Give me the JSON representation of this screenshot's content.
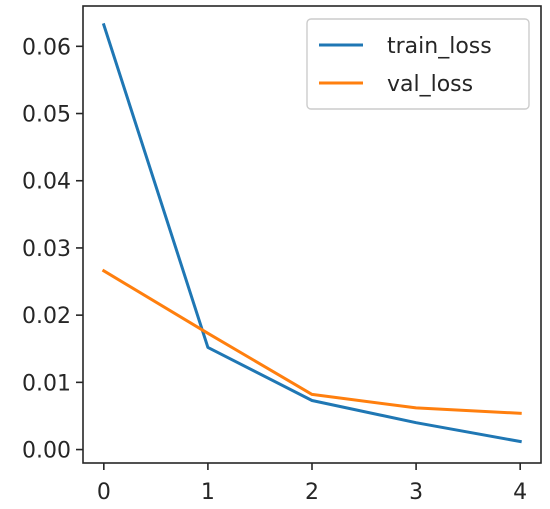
{
  "chart_data": {
    "type": "line",
    "title": "",
    "xlabel": "",
    "ylabel": "",
    "x": [
      0,
      1,
      2,
      3,
      4
    ],
    "xlim": [
      -0.2,
      4.2
    ],
    "ylim": [
      -0.002,
      0.066
    ],
    "xticks": [
      0,
      1,
      2,
      3,
      4
    ],
    "xtick_labels": [
      "0",
      "1",
      "2",
      "3",
      "4"
    ],
    "yticks": [
      0.0,
      0.01,
      0.02,
      0.03,
      0.04,
      0.05,
      0.06
    ],
    "ytick_labels": [
      "0.00",
      "0.01",
      "0.02",
      "0.03",
      "0.04",
      "0.05",
      "0.06"
    ],
    "grid": false,
    "legend_position": "top-right",
    "series": [
      {
        "name": "train_loss",
        "color": "#1f77b4",
        "values": [
          0.0632,
          0.0152,
          0.0073,
          0.004,
          0.0012
        ]
      },
      {
        "name": "val_loss",
        "color": "#ff7f0e",
        "values": [
          0.0266,
          0.0173,
          0.0082,
          0.0062,
          0.0054
        ]
      }
    ]
  }
}
